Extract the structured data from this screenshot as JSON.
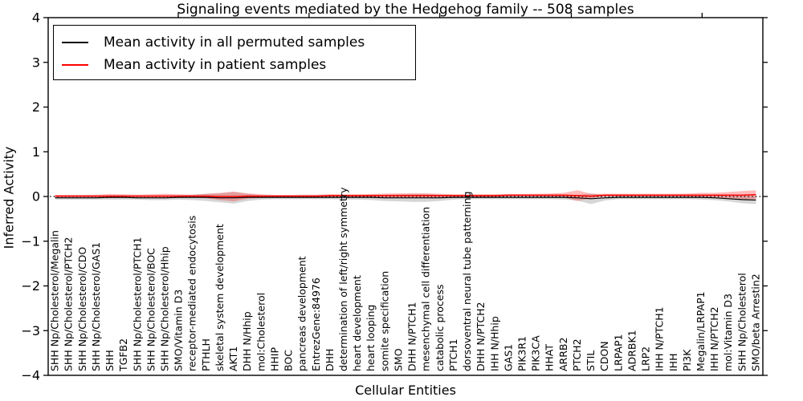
{
  "chart_data": {
    "type": "line",
    "title": "Signaling events mediated by the Hedgehog family -- 508 samples",
    "xlabel": "Cellular Entities",
    "ylabel": "Inferred Activity",
    "ylim": [
      -4,
      4
    ],
    "yticks": [
      -4,
      -3,
      -2,
      -1,
      0,
      1,
      2,
      3,
      4
    ],
    "ytick_labels": [
      "−4",
      "−3",
      "−2",
      "−1",
      "0",
      "1",
      "2",
      "3",
      "4"
    ],
    "grid": false,
    "zero_line": "dotted",
    "legend_position": "upper left",
    "categories": [
      "SHH Np/Cholesterol/Megalin",
      "SHH Np/Cholesterol/PTCH2",
      "SHH Np/Cholesterol/CDO",
      "SHH Np/Cholesterol/GAS1",
      "SHH",
      "TGFB2",
      "SHH Np/Cholesterol/PTCH1",
      "SHH Np/Cholesterol/BOC",
      "SHH Np/Cholesterol/Hhip",
      "SMO/Vitamin D3",
      "receptor-mediated endocytosis",
      "PTHLH",
      "skeletal system development",
      "AKT1",
      "DHH N/Hhip",
      "mol:Cholesterol",
      "HHIP",
      "BOC",
      "pancreas development",
      "EntrezGene:84976",
      "DHH",
      "determination of left/right symmetry",
      "heart development",
      "heart looping",
      "somite specification",
      "SMO",
      "DHH N/PTCH1",
      "mesenchymal cell differentiation",
      "catabolic process",
      "PTCH1",
      "dorsoventral neural tube patterning",
      "DHH N/PTCH2",
      "IHH N/Hhip",
      "GAS1",
      "PIK3R1",
      "PIK3CA",
      "HHAT",
      "ARRB2",
      "PTCH2",
      "STIL",
      "CDON",
      "LRPAP1",
      "ADRBK1",
      "LRP2",
      "IHH N/PTCH1",
      "IHH",
      "PI3K",
      "Megalin/LRPAP1",
      "IHH N/PTCH2",
      "mol:Vitamin D3",
      "SHH Np/Cholesterol",
      "SMO/beta Arrestin2"
    ],
    "series": [
      {
        "name": "Mean activity in all permuted samples",
        "color": "#000000",
        "band_color": "rgba(120,120,120,0.30)",
        "mean": [
          -0.03,
          -0.03,
          -0.03,
          -0.03,
          -0.02,
          -0.02,
          -0.03,
          -0.03,
          -0.03,
          -0.02,
          -0.02,
          -0.02,
          -0.03,
          -0.03,
          -0.02,
          -0.02,
          -0.02,
          -0.02,
          -0.02,
          -0.02,
          -0.02,
          -0.02,
          -0.02,
          -0.02,
          -0.03,
          -0.03,
          -0.03,
          -0.03,
          -0.03,
          -0.02,
          -0.02,
          -0.02,
          -0.02,
          -0.02,
          -0.02,
          -0.02,
          -0.02,
          -0.02,
          -0.03,
          -0.05,
          -0.03,
          -0.02,
          -0.02,
          -0.02,
          -0.02,
          -0.02,
          -0.02,
          -0.02,
          -0.03,
          -0.05,
          -0.07,
          -0.08
        ],
        "std": [
          0.04,
          0.04,
          0.04,
          0.04,
          0.05,
          0.05,
          0.04,
          0.05,
          0.05,
          0.05,
          0.06,
          0.08,
          0.1,
          0.13,
          0.08,
          0.05,
          0.04,
          0.04,
          0.04,
          0.04,
          0.04,
          0.05,
          0.05,
          0.06,
          0.07,
          0.08,
          0.09,
          0.09,
          0.07,
          0.05,
          0.04,
          0.04,
          0.04,
          0.04,
          0.04,
          0.04,
          0.04,
          0.05,
          0.06,
          0.12,
          0.06,
          0.04,
          0.04,
          0.04,
          0.04,
          0.04,
          0.04,
          0.05,
          0.05,
          0.06,
          0.08,
          0.09
        ]
      },
      {
        "name": "Mean activity in patient samples",
        "color": "#ff0000",
        "band_color": "rgba(255,30,30,0.30)",
        "mean": [
          0.01,
          0.01,
          0.01,
          0.01,
          0.01,
          0.01,
          0.01,
          0.01,
          0.01,
          0.01,
          0.01,
          0.01,
          0.0,
          0.0,
          0.01,
          0.01,
          0.01,
          0.01,
          0.01,
          0.01,
          0.02,
          0.02,
          0.02,
          0.02,
          0.02,
          0.02,
          0.02,
          0.02,
          0.02,
          0.02,
          0.02,
          0.02,
          0.02,
          0.03,
          0.03,
          0.03,
          0.03,
          0.03,
          0.02,
          0.01,
          0.03,
          0.03,
          0.03,
          0.03,
          0.03,
          0.03,
          0.03,
          0.03,
          0.03,
          0.03,
          0.03,
          0.04
        ],
        "std": [
          0.025,
          0.025,
          0.025,
          0.03,
          0.045,
          0.04,
          0.03,
          0.04,
          0.05,
          0.04,
          0.03,
          0.05,
          0.08,
          0.11,
          0.06,
          0.04,
          0.025,
          0.025,
          0.03,
          0.03,
          0.03,
          0.03,
          0.03,
          0.035,
          0.045,
          0.05,
          0.05,
          0.05,
          0.04,
          0.03,
          0.03,
          0.03,
          0.03,
          0.025,
          0.025,
          0.03,
          0.035,
          0.05,
          0.12,
          0.05,
          0.03,
          0.03,
          0.03,
          0.03,
          0.03,
          0.03,
          0.035,
          0.05,
          0.05,
          0.07,
          0.09,
          0.1
        ]
      }
    ]
  }
}
